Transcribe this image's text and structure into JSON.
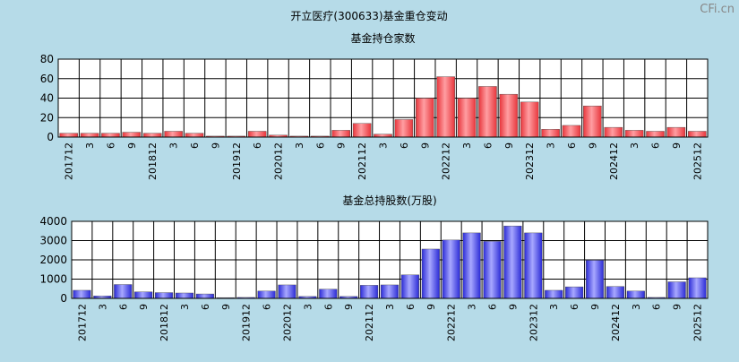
{
  "page": {
    "title": "开立医疗(300633)基金重仓变动",
    "watermark": "CFi.cn"
  },
  "colors": {
    "background": "#b6dbe8",
    "plot_background": "#ffffff",
    "grid": "#000000",
    "bar_red": "#e8363c",
    "bar_red_light": "#ff9ea2",
    "bar_blue": "#2b2bd6",
    "bar_blue_light": "#a8a8ff"
  },
  "chart_data": [
    {
      "type": "bar",
      "title": "基金持仓家数",
      "xlabel": "",
      "ylabel": "",
      "ylim": [
        0,
        80
      ],
      "yticks": [
        0,
        20,
        40,
        60,
        80
      ],
      "grid": true,
      "categories": [
        "201712",
        "3",
        "6",
        "9",
        "201812",
        "3",
        "6",
        "9",
        "201912",
        "6",
        "202012",
        "3",
        "6",
        "9",
        "202112",
        "3",
        "6",
        "9",
        "202212",
        "3",
        "6",
        "9",
        "202312",
        "3",
        "6",
        "9",
        "202412",
        "3",
        "6",
        "9",
        "202512"
      ],
      "values": [
        4,
        4,
        4,
        5,
        4,
        6,
        4,
        1,
        1,
        6,
        2,
        1,
        1,
        7,
        14,
        3,
        18,
        40,
        62,
        40,
        52,
        44,
        36,
        8,
        12,
        32,
        10,
        7,
        6,
        10,
        6
      ]
    },
    {
      "type": "bar",
      "title": "基金总持股数(万股)",
      "xlabel": "",
      "ylabel": "",
      "ylim": [
        0,
        4000
      ],
      "yticks": [
        0,
        1000,
        2000,
        3000,
        4000
      ],
      "grid": true,
      "categories": [
        "201712",
        "3",
        "6",
        "9",
        "201812",
        "3",
        "6",
        "9",
        "201912",
        "6",
        "202012",
        "3",
        "6",
        "9",
        "202112",
        "3",
        "6",
        "9",
        "202212",
        "3",
        "6",
        "9",
        "202312",
        "3",
        "6",
        "9",
        "202412",
        "3",
        "6",
        "9",
        "202512"
      ],
      "values": [
        420,
        130,
        720,
        340,
        300,
        280,
        230,
        40,
        50,
        380,
        700,
        100,
        480,
        100,
        680,
        700,
        1220,
        2560,
        3030,
        3400,
        2960,
        3760,
        3400,
        420,
        600,
        1980,
        620,
        380,
        50,
        860,
        1070
      ]
    }
  ]
}
